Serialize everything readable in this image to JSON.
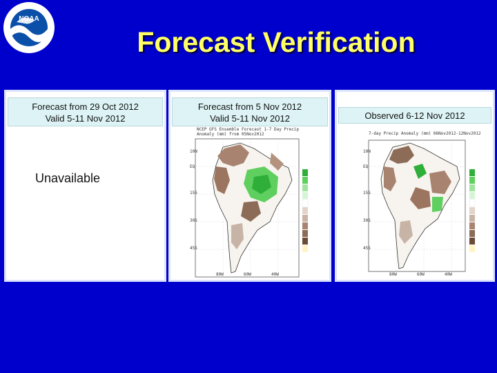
{
  "title": "Forecast Verification",
  "logo": {
    "text": "NOAA"
  },
  "panels": [
    {
      "caption_line1": "Forecast from  29 Oct 2012",
      "caption_line2": "Valid  5-11 Nov 2012",
      "status": "Unavailable"
    },
    {
      "caption_line1": "Forecast from 5 Nov 2012",
      "caption_line2": "Valid 5-11 Nov 2012"
    },
    {
      "caption_line1": "Observed 6-12 Nov 2012",
      "caption_line2": ""
    }
  ],
  "colors": {
    "background": "#0000cc",
    "title": "#ffff66",
    "caption_bg": "#ddf3f5",
    "wet": "#3fbf3f",
    "dry": "#8a5a44"
  }
}
